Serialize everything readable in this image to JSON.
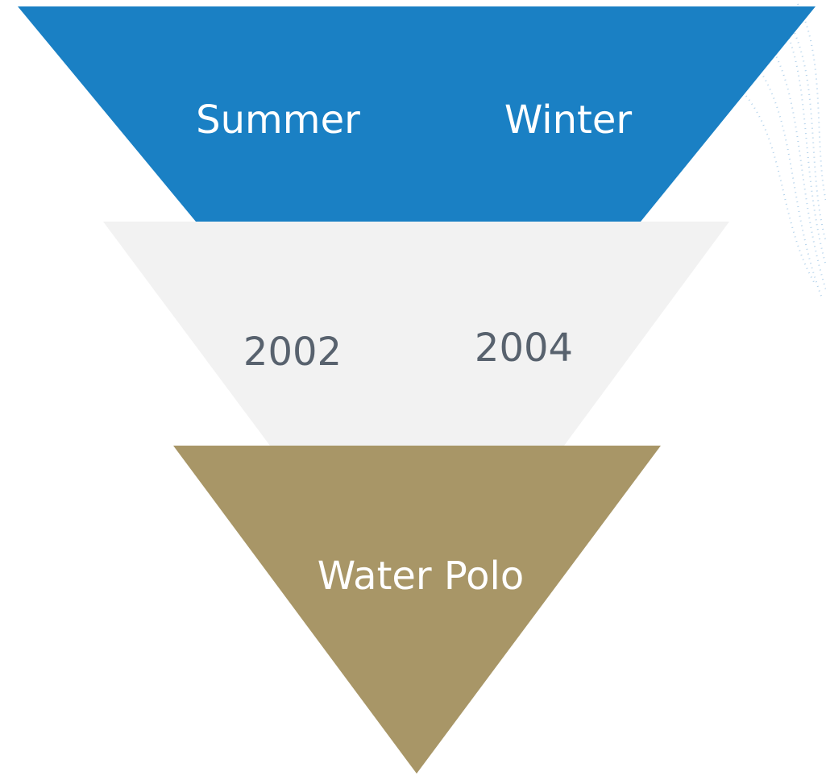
{
  "levels": [
    {
      "labels": [
        "Summer",
        "Winter"
      ]
    },
    {
      "labels": [
        "2002",
        "2004"
      ]
    },
    {
      "labels": [
        "Water Polo"
      ]
    }
  ]
}
